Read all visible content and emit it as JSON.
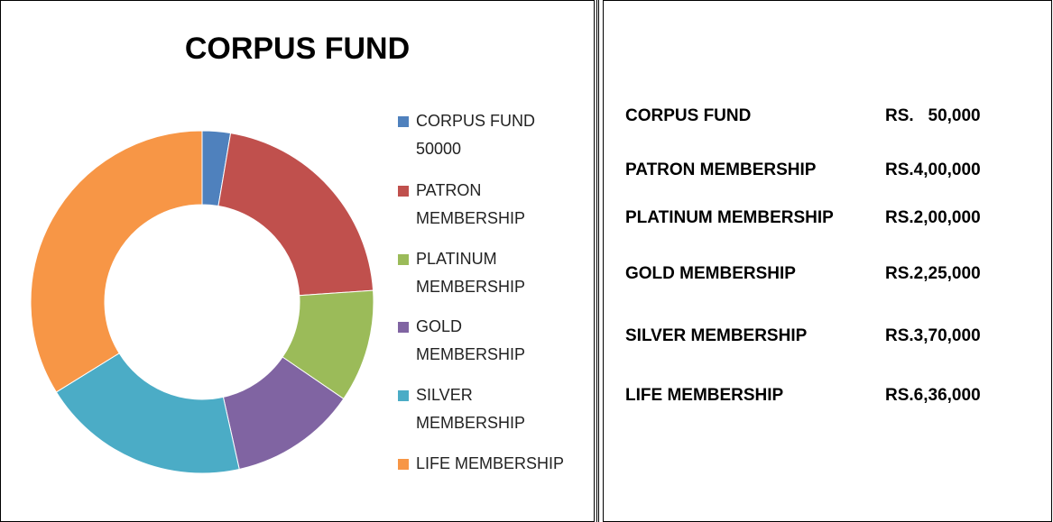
{
  "chart_data": {
    "type": "donut",
    "title": "CORPUS  FUND",
    "categories": [
      "CORPUS FUND 50000",
      "PATRON MEMBERSHIP",
      "PLATINUM MEMBERSHIP",
      "GOLD MEMBERSHIP",
      "SILVER MEMBERSHIP",
      "LIFE MEMBERSHIP"
    ],
    "values": [
      50000,
      400000,
      200000,
      225000,
      370000,
      636000
    ],
    "colors": [
      "#4f81bd",
      "#c0504d",
      "#9bbb59",
      "#8064a2",
      "#4bacc6",
      "#f79646"
    ],
    "legend": "right"
  },
  "table": {
    "rows": [
      [
        "CORPUS FUND",
        "RS.   50,000"
      ],
      [
        "PATRON MEMBERSHIP",
        "RS.4,00,000"
      ],
      [
        "PLATINUM MEMBERSHIP",
        "RS.2,00,000"
      ],
      [
        "GOLD MEMBERSHIP",
        "RS.2,25,000"
      ],
      [
        "SILVER MEMBERSHIP",
        "RS.3,70,000"
      ],
      [
        "LIFE MEMBERSHIP",
        "RS.6,36,000"
      ]
    ]
  }
}
